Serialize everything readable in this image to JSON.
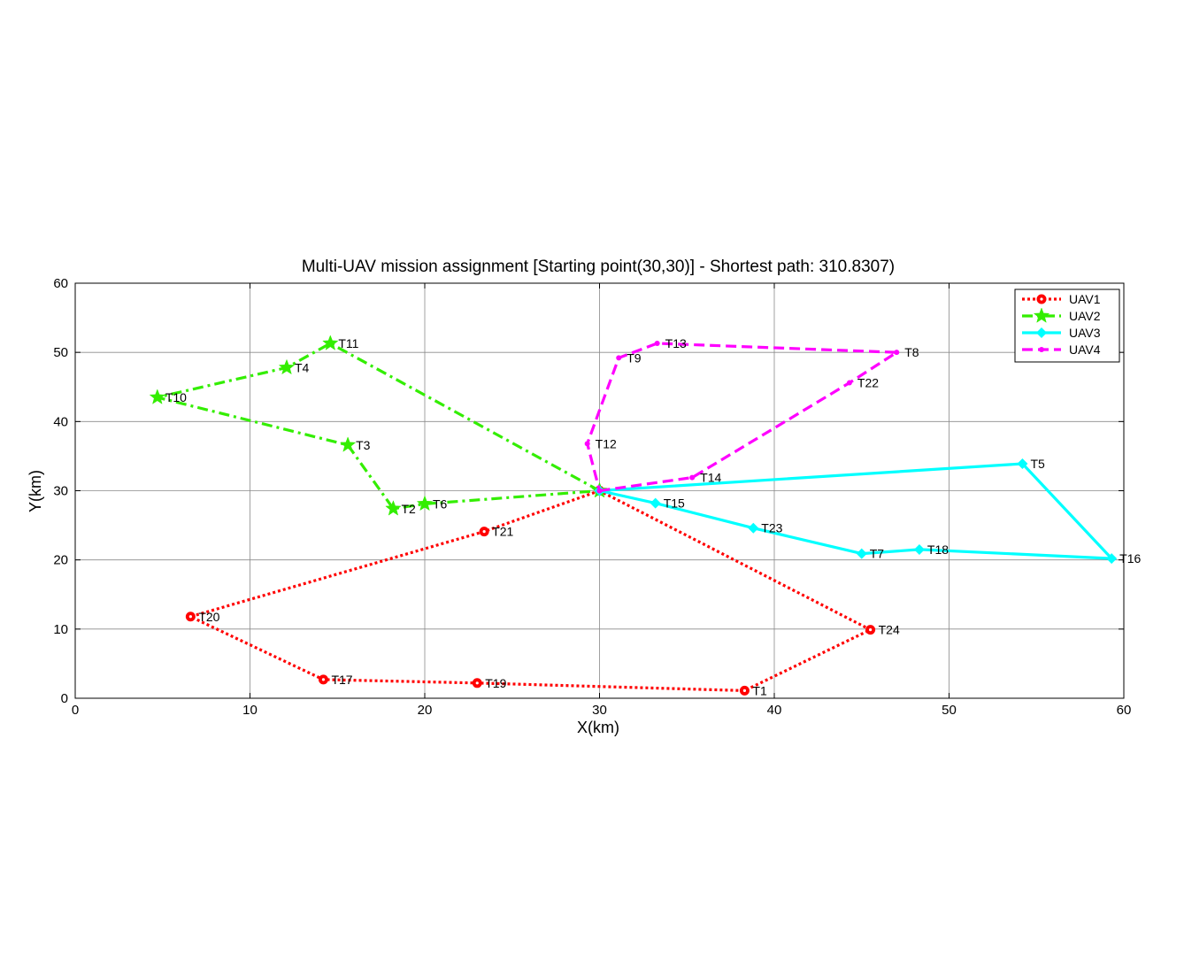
{
  "chart_data": {
    "type": "line",
    "title": "Multi-UAV mission assignment [Starting point(30,30)] - Shortest path: 310.8307)",
    "xlabel": "X(km)",
    "ylabel": "Y(km)",
    "xlim": [
      0,
      60
    ],
    "ylim": [
      0,
      60
    ],
    "xticks": [
      0,
      10,
      20,
      30,
      40,
      50,
      60
    ],
    "yticks": [
      0,
      10,
      20,
      30,
      40,
      50,
      60
    ],
    "xtick_labels": [
      "0",
      "10",
      "20",
      "30",
      "40",
      "50",
      "60"
    ],
    "ytick_labels": [
      "0",
      "10",
      "20",
      "30",
      "40",
      "50",
      "60"
    ],
    "grid": true,
    "legend_position": "top-right",
    "series": [
      {
        "name": "UAV1",
        "color": "#ff0000",
        "marker": "circle",
        "line_style": "dotted",
        "points": [
          {
            "x": 30,
            "y": 30,
            "label": ""
          },
          {
            "x": 23.4,
            "y": 24.1,
            "label": "T21"
          },
          {
            "x": 6.6,
            "y": 11.8,
            "label": "T20"
          },
          {
            "x": 14.2,
            "y": 2.7,
            "label": "T17"
          },
          {
            "x": 23,
            "y": 2.2,
            "label": "T19"
          },
          {
            "x": 38.3,
            "y": 1.1,
            "label": "T1"
          },
          {
            "x": 45.5,
            "y": 9.9,
            "label": "T24"
          },
          {
            "x": 30,
            "y": 30,
            "label": ""
          }
        ]
      },
      {
        "name": "UAV2",
        "color": "#33ee00",
        "marker": "star",
        "line_style": "dashdot",
        "points": [
          {
            "x": 30,
            "y": 30,
            "label": ""
          },
          {
            "x": 14.6,
            "y": 51.3,
            "label": "T11"
          },
          {
            "x": 12.1,
            "y": 47.8,
            "label": "T4"
          },
          {
            "x": 4.7,
            "y": 43.5,
            "label": "T10"
          },
          {
            "x": 15.6,
            "y": 36.6,
            "label": "T3"
          },
          {
            "x": 18.2,
            "y": 27.4,
            "label": "T2"
          },
          {
            "x": 20,
            "y": 28.1,
            "label": "T6"
          },
          {
            "x": 30,
            "y": 30,
            "label": ""
          }
        ]
      },
      {
        "name": "UAV3",
        "color": "#00ffff",
        "marker": "diamond",
        "line_style": "solid",
        "points": [
          {
            "x": 30,
            "y": 30,
            "label": ""
          },
          {
            "x": 54.2,
            "y": 33.9,
            "label": "T5"
          },
          {
            "x": 59.3,
            "y": 20.2,
            "label": "T16"
          },
          {
            "x": 48.3,
            "y": 21.5,
            "label": "T18"
          },
          {
            "x": 45,
            "y": 20.9,
            "label": "T7"
          },
          {
            "x": 38.8,
            "y": 24.6,
            "label": "T23"
          },
          {
            "x": 33.2,
            "y": 28.2,
            "label": "T15"
          },
          {
            "x": 30,
            "y": 30,
            "label": ""
          }
        ]
      },
      {
        "name": "UAV4",
        "color": "#ff00ff",
        "marker": "point",
        "line_style": "dashed",
        "points": [
          {
            "x": 30,
            "y": 30,
            "label": ""
          },
          {
            "x": 35.3,
            "y": 31.9,
            "label": "T14"
          },
          {
            "x": 44.3,
            "y": 45.6,
            "label": "T22"
          },
          {
            "x": 47,
            "y": 50,
            "label": "T8"
          },
          {
            "x": 33.3,
            "y": 51.3,
            "label": "T13"
          },
          {
            "x": 31.1,
            "y": 49.2,
            "label": "T9"
          },
          {
            "x": 29.3,
            "y": 36.8,
            "label": "T12"
          },
          {
            "x": 30,
            "y": 30,
            "label": ""
          }
        ]
      }
    ]
  }
}
